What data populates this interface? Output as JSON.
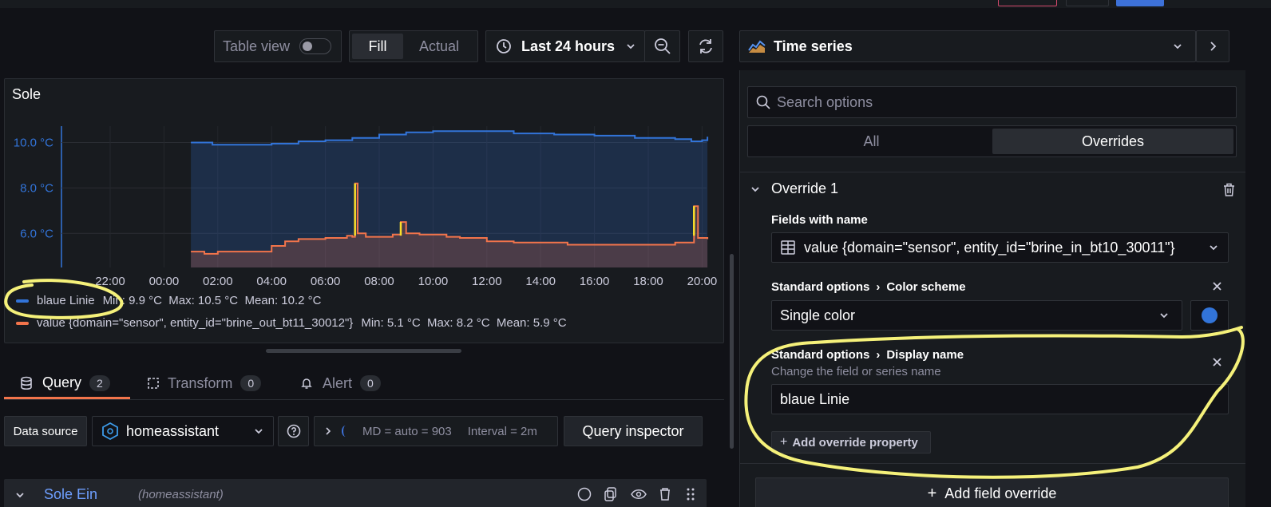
{
  "toolbar": {
    "table_view_label": "Table view",
    "fill_label": "Fill",
    "actual_label": "Actual",
    "time_range": "Last 24 hours"
  },
  "panel": {
    "title": "Sole"
  },
  "chart_data": {
    "type": "line",
    "x_ticks": [
      "22:00",
      "00:00",
      "02:00",
      "04:00",
      "06:00",
      "08:00",
      "10:00",
      "12:00",
      "14:00",
      "16:00",
      "18:00",
      "20:00"
    ],
    "y_ticks": [
      "10.0 °C",
      "8.0 °C",
      "6.0 °C"
    ],
    "ylim": [
      4.5,
      11.0
    ],
    "series": [
      {
        "name": "blaue Linie",
        "color": "#3274d9",
        "stats": "Min: 9.9 °C  Max: 10.5 °C  Mean: 10.2 °C",
        "points": [
          [
            1.0,
            10.0
          ],
          [
            1.8,
            9.9
          ],
          [
            4.0,
            9.95
          ],
          [
            5.0,
            10.05
          ],
          [
            6.0,
            10.1
          ],
          [
            7.0,
            10.2
          ],
          [
            8.0,
            10.35
          ],
          [
            9.0,
            10.45
          ],
          [
            10.0,
            10.5
          ],
          [
            11.0,
            10.5
          ],
          [
            12.0,
            10.5
          ],
          [
            13.0,
            10.4
          ],
          [
            14.5,
            10.35
          ],
          [
            16.0,
            10.3
          ],
          [
            17.5,
            10.2
          ],
          [
            19.0,
            10.15
          ],
          [
            19.6,
            10.05
          ],
          [
            20.0,
            10.1
          ],
          [
            20.2,
            10.25
          ]
        ]
      },
      {
        "name": "value {domain=\"sensor\", entity_id=\"brine_out_bt11_30012\"}",
        "color": "#f2744b",
        "stats": "Min: 5.1 °C  Max: 8.2 °C  Mean: 5.9 °C",
        "points": [
          [
            1.0,
            5.2
          ],
          [
            1.5,
            5.1
          ],
          [
            2.0,
            5.2
          ],
          [
            3.5,
            5.2
          ],
          [
            4.0,
            5.45
          ],
          [
            4.5,
            5.65
          ],
          [
            5.0,
            5.75
          ],
          [
            6.0,
            5.8
          ],
          [
            6.8,
            5.9
          ],
          [
            7.0,
            5.85
          ],
          [
            7.1,
            8.2
          ],
          [
            7.2,
            6.0
          ],
          [
            7.5,
            5.85
          ],
          [
            8.5,
            5.95
          ],
          [
            8.8,
            6.5
          ],
          [
            9.0,
            6.0
          ],
          [
            9.5,
            5.95
          ],
          [
            10.5,
            5.85
          ],
          [
            11.0,
            5.8
          ],
          [
            12.0,
            5.65
          ],
          [
            13.0,
            5.6
          ],
          [
            15.0,
            5.5
          ],
          [
            18.0,
            5.5
          ],
          [
            19.0,
            5.6
          ],
          [
            19.5,
            5.6
          ],
          [
            19.7,
            7.2
          ],
          [
            19.85,
            5.8
          ],
          [
            20.2,
            5.75
          ]
        ]
      }
    ]
  },
  "legend": {
    "s1_name": "blaue Linie",
    "s1_stats": "Min: 9.9 °C  Max: 10.5 °C  Mean: 10.2 °C",
    "s2_name": "value {domain=\"sensor\", entity_id=\"brine_out_bt11_30012\"}",
    "s2_stats": "Min: 5.1 °C  Max: 8.2 °C  Mean: 5.9 °C"
  },
  "query_tabs": {
    "query_label": "Query",
    "query_count": "2",
    "transform_label": "Transform",
    "transform_count": "0",
    "alert_label": "Alert",
    "alert_count": "0"
  },
  "datasource": {
    "label": "Data source",
    "value": "homeassistant",
    "md_text": "MD = auto = 903",
    "interval_text": "Interval = 2m",
    "inspector_label": "Query inspector"
  },
  "query_row": {
    "name": "Sole Ein",
    "source": "(homeassistant)"
  },
  "options": {
    "viz_name": "Time series",
    "search_placeholder": "Search options",
    "tab_all": "All",
    "tab_overrides": "Overrides",
    "override_title": "Override 1",
    "fields_label": "Fields with name",
    "fields_value": "value {domain=\"sensor\", entity_id=\"brine_in_bt10_30011\"}",
    "color_crumb_1": "Standard options",
    "color_crumb_2": "Color scheme",
    "color_value": "Single color",
    "color_swatch": "#3274d9",
    "display_crumb_1": "Standard options",
    "display_crumb_2": "Display name",
    "display_desc": "Change the field or series name",
    "display_value": "blaue Linie",
    "add_property_label": "Add override property",
    "add_field_override_label": "Add field override"
  },
  "colors": {
    "annotation": "#f5f17a",
    "accent_orange": "#f2744b"
  }
}
